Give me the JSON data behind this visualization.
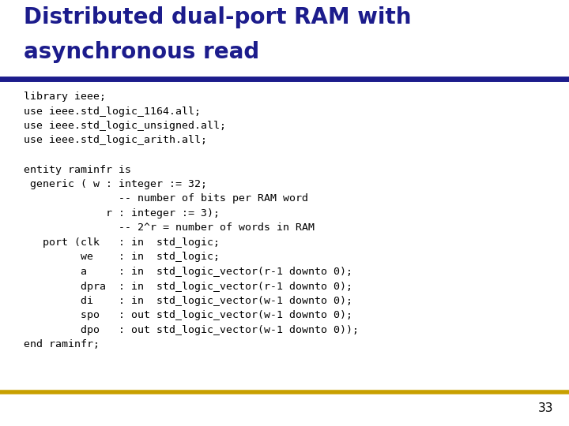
{
  "title_line1": "Distributed dual-port RAM with",
  "title_line2": "asynchronous read",
  "title_color": "#1C1C8C",
  "title_fontsize": 20,
  "bg_color": "#FFFFFF",
  "header_bar_color": "#1C1C8C",
  "footer_bar_color": "#C8A000",
  "code_lines": [
    "library ieee;",
    "use ieee.std_logic_1164.all;",
    "use ieee.std_logic_unsigned.all;",
    "use ieee.std_logic_arith.all;",
    "",
    "entity raminfr is",
    " generic ( w : integer := 32;",
    "               -- number of bits per RAM word",
    "             r : integer := 3);",
    "               -- 2^r = number of words in RAM",
    "   port (clk   : in  std_logic;",
    "         we    : in  std_logic;",
    "         a     : in  std_logic_vector(r-1 downto 0);",
    "         dpra  : in  std_logic_vector(r-1 downto 0);",
    "         di    : in  std_logic_vector(w-1 downto 0);",
    "         spo   : out std_logic_vector(w-1 downto 0);",
    "         dpo   : out std_logic_vector(w-1 downto 0));",
    "end raminfr;"
  ],
  "code_color": "#000000",
  "code_fontsize": 9.5,
  "page_number": "33",
  "page_number_color": "#000000",
  "page_number_fontsize": 11
}
